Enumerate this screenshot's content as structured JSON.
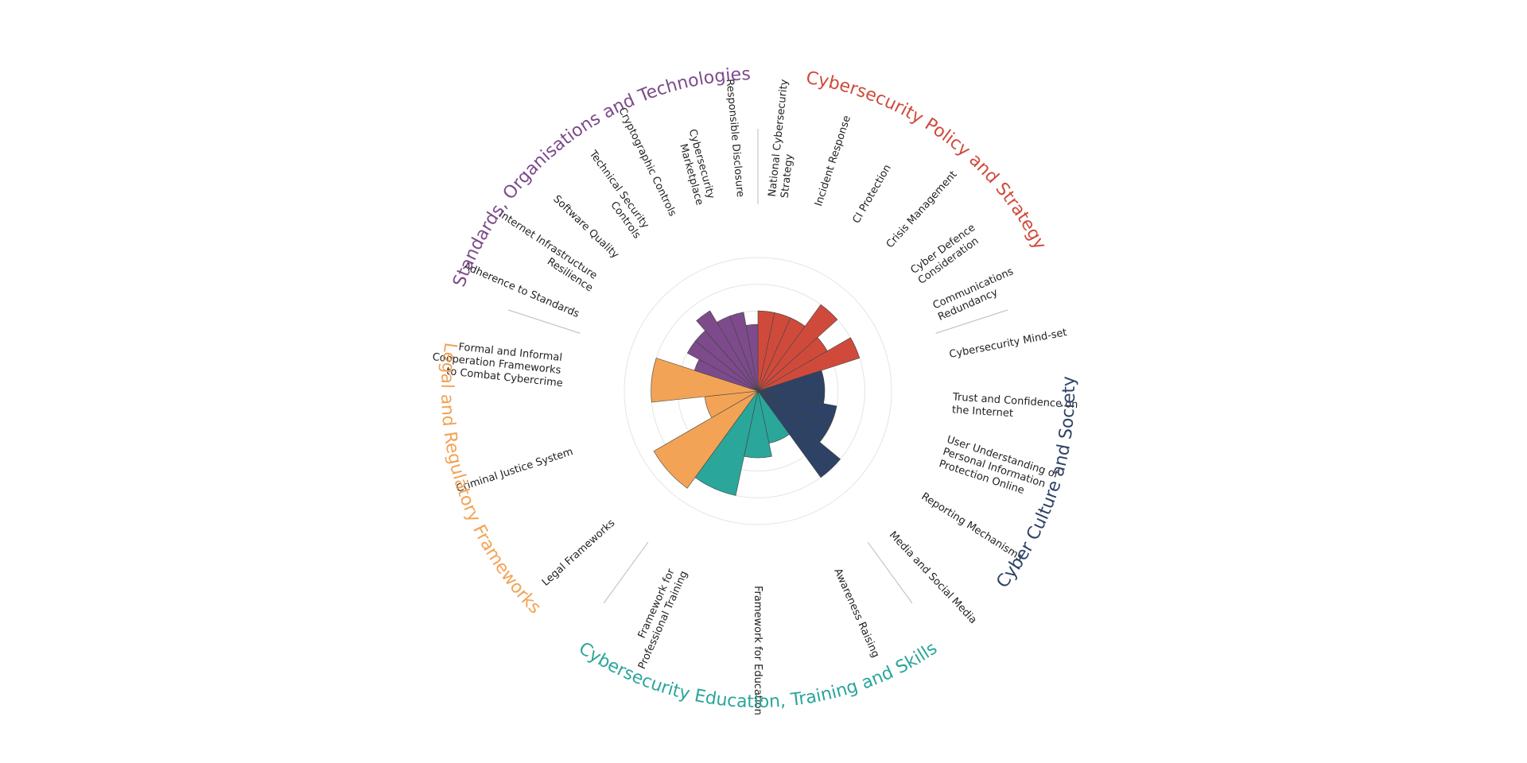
{
  "chart_data": {
    "type": "polar-area",
    "ylim": [
      0,
      5
    ],
    "yticks": [
      1,
      2,
      3,
      4,
      5
    ],
    "grid": true,
    "groups": [
      {
        "name": "Cybersecurity Policy and Strategy",
        "color": "#d04a3c",
        "categories": [
          "National Cybersecurity Strategy",
          "Incident Response",
          "CI Protection",
          "Crisis Management",
          "Cyber Defence Consideration",
          "Communications Redundancy"
        ],
        "values": [
          3,
          3,
          3,
          4,
          3,
          4
        ]
      },
      {
        "name": "Cyber Culture and Society",
        "color": "#2e4265",
        "categories": [
          "Cybersecurity Mind-set",
          "Trust and Confidence on the Internet",
          "User Understanding of Personal Information Protection Online",
          "Reporting Mechanisms",
          "Media and Social Media"
        ],
        "values": [
          2.5,
          2.5,
          3,
          3,
          4
        ]
      },
      {
        "name": "Cybersecurity Education, Training and Skills",
        "color": "#2aa69a",
        "categories": [
          "Awareness Raising",
          "Framework for Education",
          "Framework for Professional Training"
        ],
        "values": [
          2,
          2.5,
          4
        ]
      },
      {
        "name": "Legal and Regulatory Frameworks",
        "color": "#f2a355",
        "categories": [
          "Legal Frameworks",
          "Criminal Justice System",
          "Formal and Informal Cooperation Frameworks to Combat Cybercrime"
        ],
        "values": [
          4.5,
          2,
          4
        ]
      },
      {
        "name": "Standards, Organisations and Technologies",
        "color": "#7d4a8c",
        "categories": [
          "Adherence to Standards",
          "Internet Infrastructure Resilience",
          "Software Quality",
          "Technical Security Controls",
          "Cryptographic Controls",
          "Cybersecurity Marketplace",
          "Responsible Disclosure"
        ],
        "values": [
          2.5,
          3,
          3,
          3.5,
          3,
          3,
          2.5
        ]
      }
    ]
  }
}
